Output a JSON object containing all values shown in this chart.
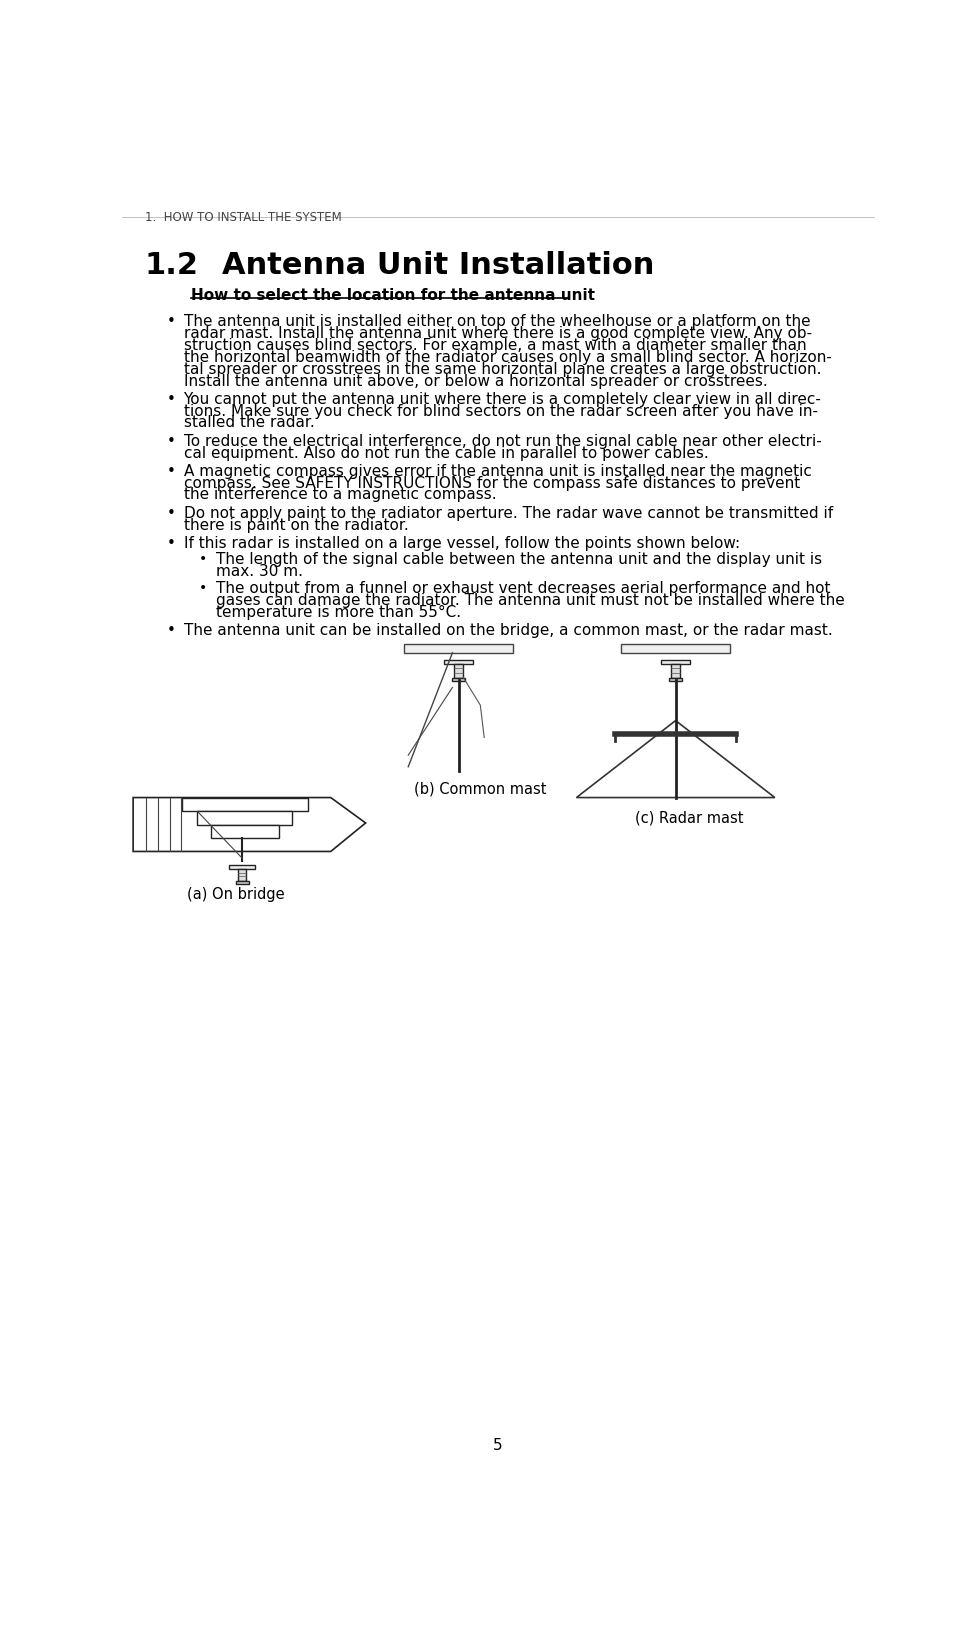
{
  "page_number": "5",
  "header_text": "1.  HOW TO INSTALL THE SYSTEM",
  "section_number": "1.2",
  "section_title": "Antenna Unit Installation",
  "subsection_title": "How to select the location for the antenna unit",
  "bullet_lines_1": [
    "The antenna unit is installed either on top of the wheelhouse or a platform on the",
    "radar mast. Install the antenna unit where there is a good complete view. Any ob-",
    "struction causes blind sectors. For example, a mast with a diameter smaller than",
    "the horizontal beamwidth of the radiator causes only a small blind sector. A horizon-",
    "tal spreader or crosstrees in the same horizontal plane creates a large obstruction.",
    "Install the antenna unit above, or below a horizontal spreader or crosstrees."
  ],
  "bullet_lines_2": [
    "You cannot put the antenna unit where there is a completely clear view in all direc-",
    "tions. Make sure you check for blind sectors on the radar screen after you have in-",
    "stalled the radar."
  ],
  "bullet_lines_3": [
    "To reduce the electrical interference, do not run the signal cable near other electri-",
    "cal equipment. Also do not run the cable in parallel to power cables."
  ],
  "bullet_lines_4": [
    "A magnetic compass gives error if the antenna unit is installed near the magnetic",
    "compass. See SAFETY INSTRUCTIONS for the compass safe distances to prevent",
    "the interference to a magnetic compass."
  ],
  "bullet_lines_5": [
    "Do not apply paint to the radiator aperture. The radar wave cannot be transmitted if",
    "there is paint on the radiator."
  ],
  "bullet_lines_6": [
    "If this radar is installed on a large vessel, follow the points shown below:"
  ],
  "sub_lines_1": [
    "The length of the signal cable between the antenna unit and the display unit is",
    "max. 30 m."
  ],
  "sub_lines_2": [
    "The output from a funnel or exhaust vent decreases aerial performance and hot",
    "gases can damage the radiator. The antenna unit must not be installed where the",
    "temperature is more than 55°C."
  ],
  "last_bullet": "The antenna unit can be installed on the bridge, a common mast, or the radar mast.",
  "caption_a": "(a) On bridge",
  "caption_b": "(b) Common mast",
  "caption_c": "(c) Radar mast",
  "bg_color": "#ffffff",
  "text_color": "#000000",
  "header_color": "#555555"
}
